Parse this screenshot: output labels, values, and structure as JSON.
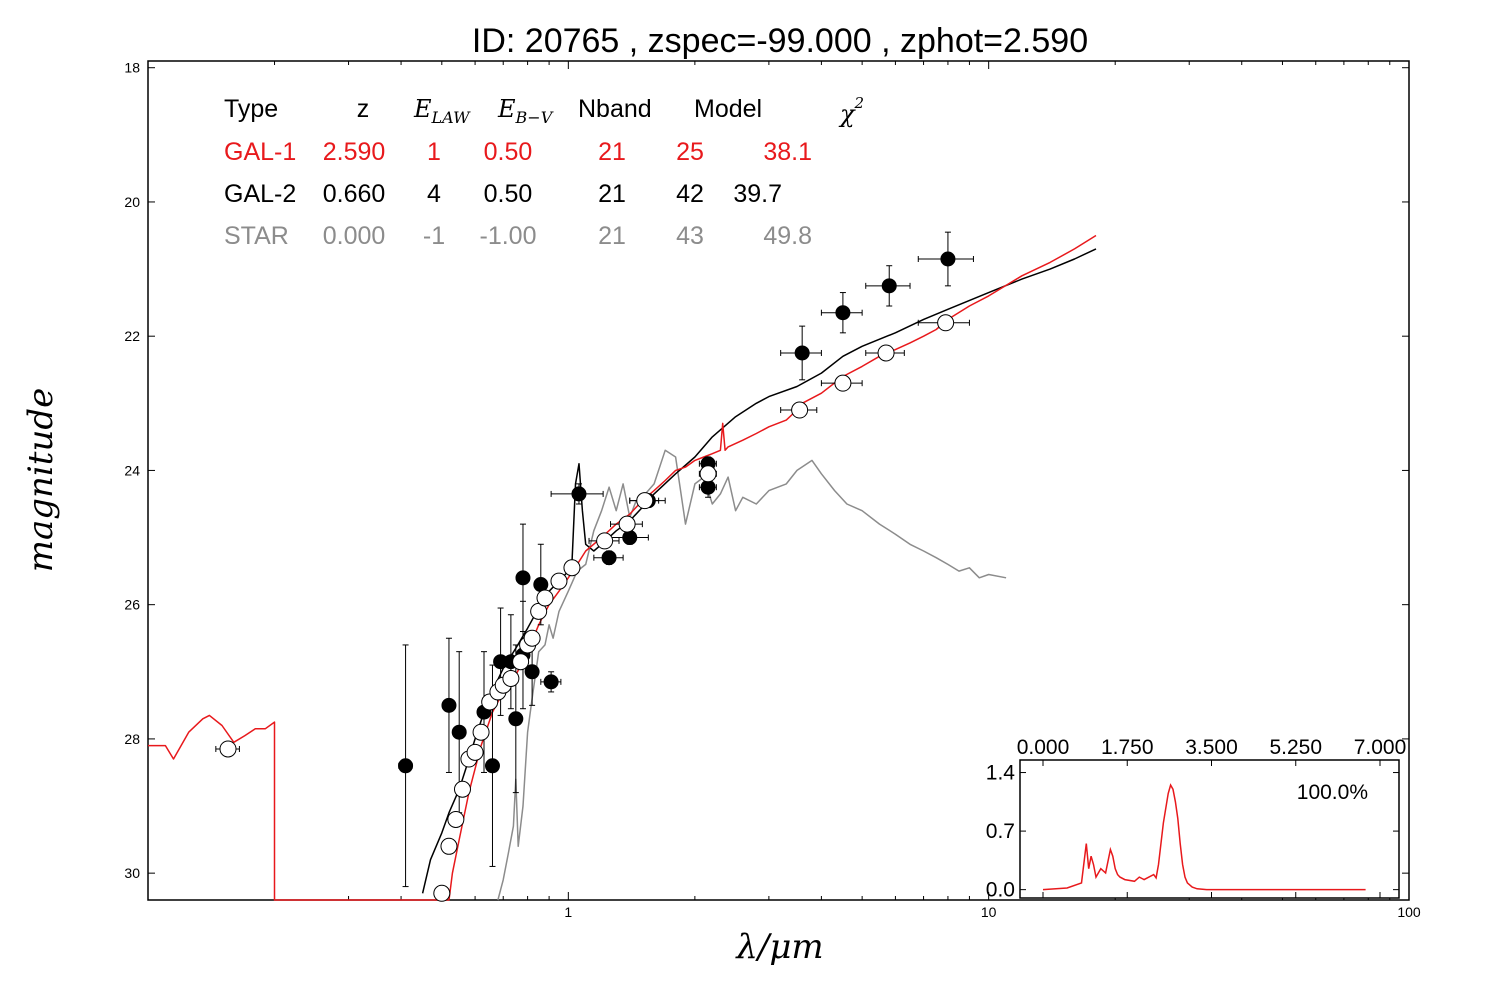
{
  "colors": {
    "gal1": "#e8191c",
    "gal2": "#000000",
    "star": "#8c8c8c",
    "axis": "#000000"
  },
  "chart_data": {
    "type": "line",
    "title": "ID:  20765 , zspec=-99.000 , zphot=2.590",
    "xlabel": "λ/μm",
    "ylabel": "magnitude",
    "xscale": "log",
    "xlim": [
      0.1,
      100
    ],
    "ylim": [
      30.4,
      17.9
    ],
    "x_ticks": [
      1,
      10,
      100
    ],
    "x_tick_labels": [
      "1",
      "10",
      "100"
    ],
    "y_ticks": [
      18,
      20,
      22,
      24,
      26,
      28,
      30
    ],
    "y_tick_labels": [
      "18",
      "20",
      "22",
      "24",
      "26",
      "28",
      "30"
    ],
    "fit_table": {
      "headers": {
        "type": "Type",
        "z": "z",
        "elaw": "E",
        "elaw_sub": "LAW",
        "ebv": "E",
        "ebv_sub": "B−V",
        "nband": "Nband",
        "model": "Model",
        "chi": "χ",
        "chi_sup": "2"
      },
      "rows": [
        {
          "type": "GAL-1",
          "z": "2.590",
          "elaw": "1",
          "ebv": "0.50",
          "nband": "21",
          "model": "25",
          "chi2": "38.1",
          "color": "#e8191c"
        },
        {
          "type": "GAL-2",
          "z": "0.660",
          "elaw": "4",
          "ebv": "0.50",
          "nband": "21",
          "model": "42",
          "chi2": "39.7",
          "color": "#000000"
        },
        {
          "type": "STAR",
          "z": "0.000",
          "elaw": "-1",
          "ebv": "-1.00",
          "nband": "21",
          "model": "43",
          "chi2": "49.8",
          "color": "#8c8c8c"
        }
      ]
    },
    "series": [
      {
        "name": "GAL-1",
        "color": "#e8191c",
        "x": [
          0.1,
          0.11,
          0.115,
          0.125,
          0.135,
          0.14,
          0.15,
          0.16,
          0.17,
          0.18,
          0.19,
          0.2,
          0.2,
          0.21,
          0.52,
          0.53,
          0.55,
          0.58,
          0.62,
          0.66,
          0.7,
          0.75,
          0.8,
          0.85,
          0.9,
          0.95,
          1.0,
          1.05,
          1.1,
          1.2,
          1.3,
          1.4,
          1.5,
          1.6,
          1.7,
          1.8,
          1.9,
          2.0,
          2.1,
          2.2,
          2.3,
          2.33,
          2.36,
          2.4,
          2.6,
          2.8,
          3.0,
          3.3,
          3.5,
          3.6,
          4.0,
          4.5,
          5.0,
          5.5,
          6.0,
          6.5,
          7.0,
          7.5,
          8.0,
          9.0,
          10.0,
          12.0,
          14.0,
          16.0,
          18.0
        ],
        "y": [
          28.1,
          28.1,
          28.3,
          27.9,
          27.7,
          27.65,
          27.8,
          28.05,
          27.95,
          27.85,
          27.85,
          27.75,
          30.4,
          30.4,
          30.4,
          30.0,
          29.5,
          28.8,
          28.1,
          27.6,
          27.3,
          27.05,
          26.7,
          26.3,
          26.0,
          25.8,
          25.6,
          25.4,
          25.2,
          25.0,
          24.8,
          24.65,
          24.45,
          24.3,
          24.15,
          24.0,
          23.95,
          23.85,
          23.8,
          23.75,
          23.7,
          23.3,
          23.7,
          23.65,
          23.55,
          23.45,
          23.35,
          23.25,
          23.1,
          23.0,
          22.85,
          22.6,
          22.45,
          22.3,
          22.2,
          22.1,
          22.0,
          21.9,
          21.75,
          21.55,
          21.4,
          21.1,
          20.9,
          20.7,
          20.5
        ]
      },
      {
        "name": "GAL-2",
        "color": "#000000",
        "x": [
          0.45,
          0.47,
          0.5,
          0.52,
          0.55,
          0.57,
          0.6,
          0.63,
          0.67,
          0.7,
          0.75,
          0.8,
          0.85,
          0.9,
          0.95,
          1.0,
          1.02,
          1.04,
          1.06,
          1.08,
          1.1,
          1.15,
          1.2,
          1.3,
          1.4,
          1.5,
          1.6,
          1.8,
          2.0,
          2.2,
          2.5,
          2.8,
          3.0,
          3.5,
          4.0,
          4.5,
          5.0,
          6.0,
          7.0,
          8.0,
          10.0,
          12.0,
          14.0,
          16.0,
          18.0
        ],
        "y": [
          30.3,
          29.8,
          29.4,
          29.1,
          28.75,
          28.45,
          28.0,
          27.6,
          27.2,
          26.95,
          26.65,
          26.35,
          26.05,
          25.8,
          25.65,
          25.5,
          25.4,
          24.2,
          23.9,
          24.6,
          25.1,
          25.2,
          25.1,
          24.9,
          24.75,
          24.55,
          24.35,
          24.05,
          23.8,
          23.5,
          23.2,
          23.0,
          22.9,
          22.75,
          22.55,
          22.3,
          22.15,
          21.95,
          21.75,
          21.6,
          21.35,
          21.15,
          21.0,
          20.85,
          20.7
        ]
      },
      {
        "name": "STAR",
        "color": "#8c8c8c",
        "x": [
          0.68,
          0.7,
          0.72,
          0.74,
          0.75,
          0.76,
          0.78,
          0.8,
          0.82,
          0.85,
          0.88,
          0.9,
          0.92,
          0.95,
          1.0,
          1.05,
          1.1,
          1.15,
          1.2,
          1.25,
          1.3,
          1.35,
          1.4,
          1.45,
          1.5,
          1.6,
          1.7,
          1.8,
          1.9,
          2.0,
          2.1,
          2.2,
          2.3,
          2.4,
          2.5,
          2.6,
          2.8,
          3.0,
          3.3,
          3.5,
          3.8,
          4.0,
          4.3,
          4.6,
          5.0,
          5.5,
          6.0,
          6.5,
          7.0,
          7.5,
          8.0,
          8.5,
          9.0,
          9.5,
          10.0,
          11.0
        ],
        "y": [
          30.4,
          30.1,
          29.7,
          29.3,
          28.6,
          29.6,
          29.0,
          27.9,
          27.4,
          26.7,
          26.6,
          26.3,
          26.5,
          26.1,
          25.8,
          25.5,
          25.4,
          24.9,
          24.6,
          24.25,
          24.6,
          24.2,
          24.7,
          24.45,
          24.4,
          24.2,
          23.7,
          23.8,
          24.8,
          24.2,
          24.1,
          24.5,
          24.35,
          24.1,
          24.6,
          24.4,
          24.5,
          24.3,
          24.2,
          24.0,
          23.85,
          24.05,
          24.3,
          24.5,
          24.6,
          24.8,
          24.95,
          25.1,
          25.2,
          25.3,
          25.4,
          25.5,
          25.45,
          25.6,
          25.55,
          25.6
        ]
      }
    ],
    "observed": [
      {
        "x": 0.41,
        "y": 28.4,
        "xerr": 0.015,
        "yerr": 1.8
      },
      {
        "x": 0.52,
        "y": 27.5,
        "xerr": 0.01,
        "yerr": 1.0
      },
      {
        "x": 0.55,
        "y": 27.9,
        "xerr": 0.01,
        "yerr": 1.2
      },
      {
        "x": 0.63,
        "y": 27.6,
        "xerr": 0.012,
        "yerr": 0.9
      },
      {
        "x": 0.66,
        "y": 28.4,
        "xerr": 0.01,
        "yerr": 1.5
      },
      {
        "x": 0.69,
        "y": 26.85,
        "xerr": 0.012,
        "yerr": 0.8
      },
      {
        "x": 0.73,
        "y": 26.85,
        "xerr": 0.015,
        "yerr": 0.7
      },
      {
        "x": 0.75,
        "y": 27.7,
        "xerr": 0.01,
        "yerr": 1.1
      },
      {
        "x": 0.78,
        "y": 26.75,
        "xerr": 0.015,
        "yerr": 0.8
      },
      {
        "x": 0.78,
        "y": 25.6,
        "xerr": 0.01,
        "yerr": 0.8
      },
      {
        "x": 0.82,
        "y": 27.0,
        "xerr": 0.015,
        "yerr": 0.5
      },
      {
        "x": 0.86,
        "y": 25.7,
        "xerr": 0.01,
        "yerr": 0.6
      },
      {
        "x": 0.91,
        "y": 27.15,
        "xerr": 0.05,
        "yerr": 0.15
      },
      {
        "x": 1.06,
        "y": 24.35,
        "xerr": 0.15,
        "yerr": 0.15
      },
      {
        "x": 1.25,
        "y": 25.3,
        "xerr": 0.1,
        "yerr": 0.1
      },
      {
        "x": 1.4,
        "y": 25.0,
        "xerr": 0.15,
        "yerr": 0.1
      },
      {
        "x": 1.55,
        "y": 24.45,
        "xerr": 0.15,
        "yerr": 0.1
      },
      {
        "x": 2.15,
        "y": 23.9,
        "xerr": 0.1,
        "yerr": 0.1
      },
      {
        "x": 2.15,
        "y": 24.25,
        "xerr": 0.1,
        "yerr": 0.15
      },
      {
        "x": 3.6,
        "y": 22.25,
        "xerr": 0.4,
        "yerr": 0.4
      },
      {
        "x": 4.5,
        "y": 21.65,
        "xerr": 0.5,
        "yerr": 0.3
      },
      {
        "x": 5.8,
        "y": 21.25,
        "xerr": 0.7,
        "yerr": 0.3
      },
      {
        "x": 8.0,
        "y": 20.85,
        "xerr": 1.2,
        "yerr": 0.4
      }
    ],
    "model_photometry": [
      {
        "x": 0.155,
        "y": 28.15,
        "xerr": 0.01
      },
      {
        "x": 0.5,
        "y": 30.3
      },
      {
        "x": 0.52,
        "y": 29.6
      },
      {
        "x": 0.54,
        "y": 29.2
      },
      {
        "x": 0.56,
        "y": 28.75
      },
      {
        "x": 0.58,
        "y": 28.3
      },
      {
        "x": 0.6,
        "y": 28.2
      },
      {
        "x": 0.62,
        "y": 27.9
      },
      {
        "x": 0.65,
        "y": 27.45
      },
      {
        "x": 0.68,
        "y": 27.3
      },
      {
        "x": 0.7,
        "y": 27.2
      },
      {
        "x": 0.73,
        "y": 27.1
      },
      {
        "x": 0.77,
        "y": 26.85
      },
      {
        "x": 0.8,
        "y": 26.6
      },
      {
        "x": 0.82,
        "y": 26.5
      },
      {
        "x": 0.85,
        "y": 26.1
      },
      {
        "x": 0.88,
        "y": 25.9
      },
      {
        "x": 0.95,
        "y": 25.65
      },
      {
        "x": 1.02,
        "y": 25.45
      },
      {
        "x": 1.22,
        "y": 25.05,
        "xerr": 0.1
      },
      {
        "x": 1.38,
        "y": 24.8,
        "xerr": 0.12
      },
      {
        "x": 1.52,
        "y": 24.45,
        "xerr": 0.12
      },
      {
        "x": 2.15,
        "y": 24.05,
        "xerr": 0.1
      },
      {
        "x": 3.55,
        "y": 23.1,
        "xerr": 0.35
      },
      {
        "x": 4.5,
        "y": 22.7,
        "xerr": 0.5
      },
      {
        "x": 5.7,
        "y": 22.25,
        "xerr": 0.6
      },
      {
        "x": 7.9,
        "y": 21.8,
        "xerr": 1.1
      }
    ],
    "inset": {
      "label": "100.0%",
      "xlim": [
        0.0,
        7.0
      ],
      "ylim": [
        -0.1,
        1.55
      ],
      "x_ticks": [
        0.0,
        1.75,
        3.5,
        5.25,
        7.0
      ],
      "x_tick_labels": [
        "0.000",
        "1.750",
        "3.500",
        "5.250",
        "7.000"
      ],
      "y_ticks": [
        0.0,
        0.7,
        1.4
      ],
      "y_tick_labels": [
        "0.0",
        "0.7",
        "1.4"
      ],
      "color": "#e8191c",
      "x": [
        0.0,
        0.5,
        0.8,
        0.9,
        0.95,
        1.0,
        1.05,
        1.1,
        1.15,
        1.2,
        1.3,
        1.4,
        1.45,
        1.5,
        1.55,
        1.6,
        1.7,
        1.9,
        2.0,
        2.1,
        2.2,
        2.3,
        2.35,
        2.4,
        2.5,
        2.6,
        2.65,
        2.7,
        2.75,
        2.8,
        2.85,
        2.9,
        2.95,
        3.0,
        3.1,
        3.2,
        3.4,
        4.0,
        5.0,
        6.0,
        6.7
      ],
      "y": [
        0.0,
        0.02,
        0.08,
        0.55,
        0.25,
        0.4,
        0.3,
        0.15,
        0.2,
        0.25,
        0.2,
        0.48,
        0.4,
        0.25,
        0.18,
        0.15,
        0.12,
        0.1,
        0.15,
        0.12,
        0.15,
        0.18,
        0.14,
        0.3,
        0.8,
        1.15,
        1.25,
        1.2,
        1.05,
        0.85,
        0.55,
        0.3,
        0.15,
        0.08,
        0.03,
        0.01,
        0.0,
        0.0,
        0.0,
        0.0,
        0.0
      ]
    }
  }
}
